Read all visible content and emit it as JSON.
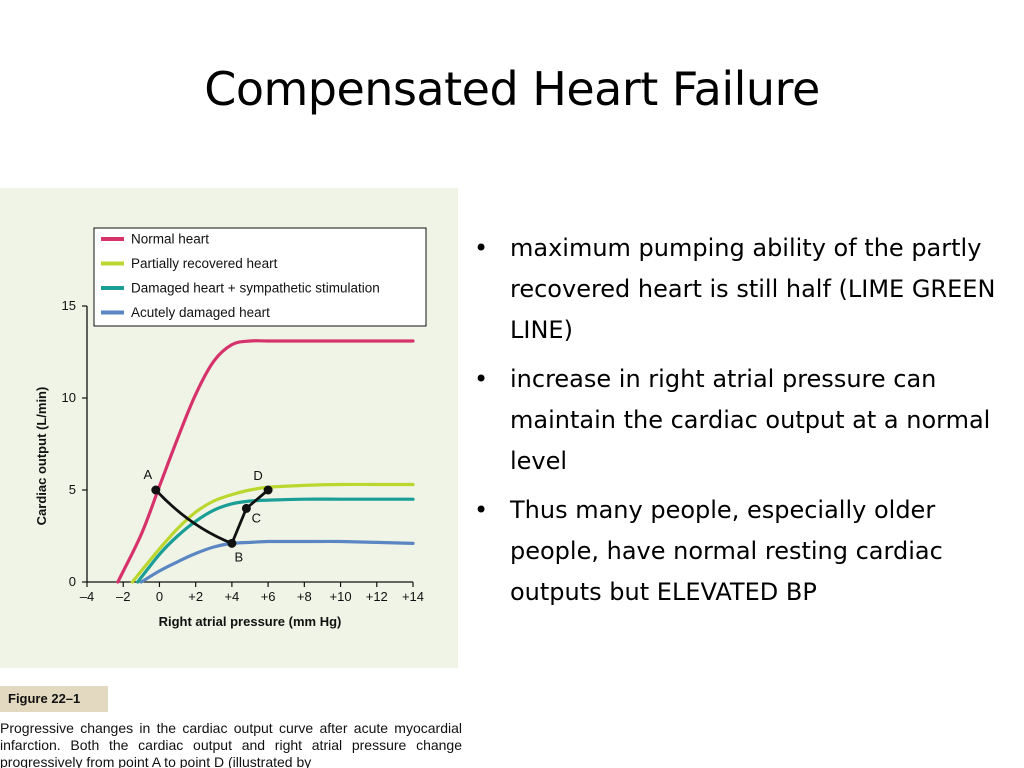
{
  "slide": {
    "title": "Compensated Heart Failure",
    "bullets": [
      "maximum pumping ability of the partly recovered heart is still half (LIME GREEN LINE)",
      "increase in right atrial pressure can maintain the cardiac output at a normal level",
      "Thus many people, especially older people, have normal resting cardiac outputs  but ELEVATED BP"
    ],
    "bullet_glyph": "•"
  },
  "figure": {
    "tag": "Figure 22–1",
    "caption": "Progressive changes in the cardiac output curve after acute myocardial infarction. Both the cardiac output and right atrial pressure change progressively from point A to point D (illustrated by"
  },
  "chart_data": {
    "type": "line",
    "xlabel": "Right atrial pressure (mm Hg)",
    "ylabel": "Cardiac output (L/min)",
    "xlim": [
      -4,
      14
    ],
    "ylim": [
      0,
      15
    ],
    "xticks": [
      -4,
      -2,
      0,
      2,
      4,
      6,
      8,
      10,
      12,
      14
    ],
    "xtick_labels": [
      "–4",
      "–2",
      "0",
      "+2",
      "+4",
      "+6",
      "+8",
      "+10",
      "+12",
      "+14"
    ],
    "yticks": [
      0,
      5,
      10,
      15
    ],
    "ytick_labels": [
      "0",
      "5",
      "10",
      "15"
    ],
    "grid": false,
    "legend_position": "top",
    "series": [
      {
        "name": "Normal heart",
        "color": "#d6336c",
        "x": [
          -2.3,
          -1,
          0,
          1,
          2,
          3,
          4,
          5,
          6,
          8,
          10,
          12,
          14
        ],
        "y": [
          0,
          2.6,
          5.2,
          7.8,
          10.2,
          12.0,
          12.9,
          13.1,
          13.1,
          13.1,
          13.1,
          13.1,
          13.1
        ]
      },
      {
        "name": "Partially recovered heart",
        "color": "#bcd630",
        "x": [
          -1.5,
          0,
          1,
          2,
          3,
          4,
          5,
          6,
          8,
          10,
          12,
          14
        ],
        "y": [
          0,
          1.8,
          2.9,
          3.8,
          4.4,
          4.75,
          5.0,
          5.15,
          5.25,
          5.3,
          5.3,
          5.3
        ]
      },
      {
        "name": "Damaged heart + sympathetic stimulation",
        "color": "#1a9e96",
        "x": [
          -1.2,
          0,
          1,
          2,
          3,
          4,
          5,
          6,
          8,
          10,
          12,
          14
        ],
        "y": [
          0,
          1.5,
          2.5,
          3.3,
          3.9,
          4.25,
          4.4,
          4.45,
          4.5,
          4.5,
          4.5,
          4.5
        ]
      },
      {
        "name": "Acutely damaged heart",
        "color": "#5a86c4",
        "x": [
          -1,
          0,
          1,
          2,
          3,
          4,
          5,
          6,
          8,
          10,
          12,
          14
        ],
        "y": [
          0,
          0.6,
          1.1,
          1.55,
          1.9,
          2.1,
          2.15,
          2.2,
          2.2,
          2.2,
          2.15,
          2.1
        ]
      }
    ],
    "transition_path": {
      "color": "#111111",
      "points": [
        {
          "label": "A",
          "x": -0.2,
          "y": 5.0
        },
        {
          "label": "B",
          "x": 4.0,
          "y": 2.1
        },
        {
          "label": "C",
          "x": 4.8,
          "y": 4.0
        },
        {
          "label": "D",
          "x": 6.0,
          "y": 5.0
        }
      ]
    }
  }
}
